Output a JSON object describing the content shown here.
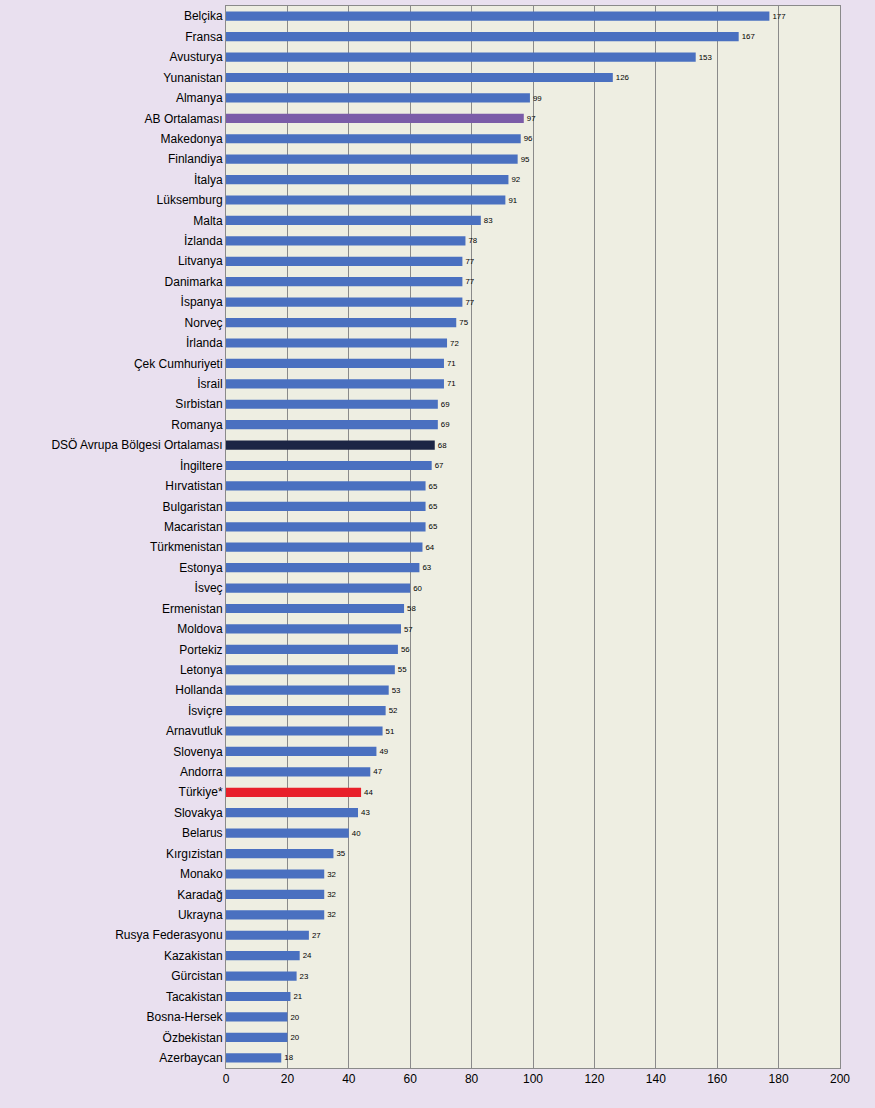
{
  "chart_data": {
    "type": "bar",
    "orientation": "horizontal",
    "categories": [
      "Belçika",
      "Fransa",
      "Avusturya",
      "Yunanistan",
      "Almanya",
      "AB Ortalaması",
      "Makedonya",
      "Finlandiya",
      "İtalya",
      "Lüksemburg",
      "Malta",
      "İzlanda",
      "Litvanya",
      "Danimarka",
      "İspanya",
      "Norveç",
      "İrlanda",
      "Çek Cumhuriyeti",
      "İsrail",
      "Sırbistan",
      "Romanya",
      "DSÖ Avrupa Bölgesi Ortalaması",
      "İngiltere",
      "Hırvatistan",
      "Bulgaristan",
      "Macaristan",
      "Türkmenistan",
      "Estonya",
      "İsveç",
      "Ermenistan",
      "Moldova",
      "Portekiz",
      "Letonya",
      "Hollanda",
      "İsviçre",
      "Arnavutluk",
      "Slovenya",
      "Andorra",
      "Türkiye*",
      "Slovakya",
      "Belarus",
      "Kırgızistan",
      "Monako",
      "Karadağ",
      "Ukrayna",
      "Rusya Federasyonu",
      "Kazakistan",
      "Gürcistan",
      "Tacakistan",
      "Bosna-Hersek",
      "Özbekistan",
      "Azerbaycan"
    ],
    "values": [
      177,
      167,
      153,
      126,
      99,
      97,
      96,
      95,
      92,
      91,
      83,
      78,
      77,
      77,
      77,
      75,
      72,
      71,
      71,
      69,
      69,
      68,
      67,
      65,
      65,
      65,
      64,
      63,
      60,
      58,
      57,
      56,
      55,
      53,
      52,
      51,
      49,
      47,
      44,
      43,
      40,
      35,
      32,
      32,
      32,
      27,
      24,
      23,
      21,
      20,
      20,
      18
    ],
    "colors": [
      "#4a70c0",
      "#4a70c0",
      "#4a70c0",
      "#4a70c0",
      "#4a70c0",
      "#7b5ca8",
      "#4a70c0",
      "#4a70c0",
      "#4a70c0",
      "#4a70c0",
      "#4a70c0",
      "#4a70c0",
      "#4a70c0",
      "#4a70c0",
      "#4a70c0",
      "#4a70c0",
      "#4a70c0",
      "#4a70c0",
      "#4a70c0",
      "#4a70c0",
      "#4a70c0",
      "#1c2545",
      "#4a70c0",
      "#4a70c0",
      "#4a70c0",
      "#4a70c0",
      "#4a70c0",
      "#4a70c0",
      "#4a70c0",
      "#4a70c0",
      "#4a70c0",
      "#4a70c0",
      "#4a70c0",
      "#4a70c0",
      "#4a70c0",
      "#4a70c0",
      "#4a70c0",
      "#4a70c0",
      "#e8202a",
      "#4a70c0",
      "#4a70c0",
      "#4a70c0",
      "#4a70c0",
      "#4a70c0",
      "#4a70c0",
      "#4a70c0",
      "#4a70c0",
      "#4a70c0",
      "#4a70c0",
      "#4a70c0",
      "#4a70c0",
      "#4a70c0"
    ],
    "xlim": [
      0,
      200
    ],
    "xticks": [
      0,
      20,
      40,
      60,
      80,
      100,
      120,
      140,
      160,
      180,
      200
    ],
    "grid": true,
    "data_labels": true
  }
}
